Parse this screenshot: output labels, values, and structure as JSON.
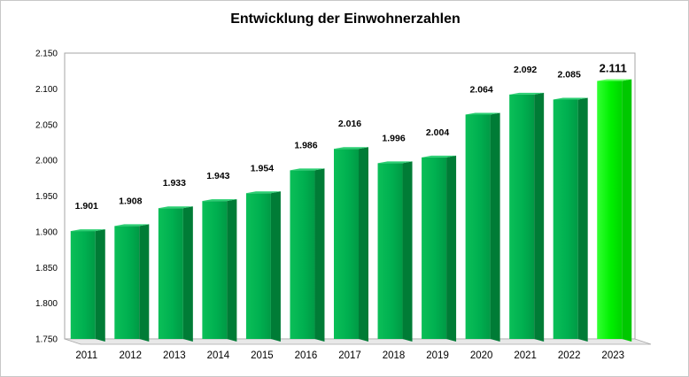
{
  "chart_data": {
    "type": "bar",
    "title": "Entwicklung der Einwohnerzahlen",
    "categories": [
      "2011",
      "2012",
      "2013",
      "2014",
      "2015",
      "2016",
      "2017",
      "2018",
      "2019",
      "2020",
      "2021",
      "2022",
      "2023"
    ],
    "values": [
      1901,
      1908,
      1933,
      1943,
      1954,
      1986,
      2016,
      1996,
      2004,
      2064,
      2092,
      2085,
      2111
    ],
    "value_labels": [
      "1.901",
      "1.908",
      "1.933",
      "1.943",
      "1.954",
      "1.986",
      "2.016",
      "1.996",
      "2.004",
      "2.064",
      "2.092",
      "2.085",
      "2.111"
    ],
    "highlight_index": 12,
    "ylim": [
      1750,
      2150
    ],
    "yticks": [
      1750,
      1800,
      1850,
      1900,
      1950,
      2000,
      2050,
      2100,
      2150
    ],
    "ytick_labels": [
      "1.750",
      "1.800",
      "1.850",
      "1.900",
      "1.950",
      "2.000",
      "2.050",
      "2.100",
      "2.150"
    ],
    "xlabel": "",
    "ylabel": "",
    "grid": false,
    "legend": "none",
    "colors": {
      "bar": "#00b050",
      "bar_highlight": "#00ff00"
    }
  }
}
